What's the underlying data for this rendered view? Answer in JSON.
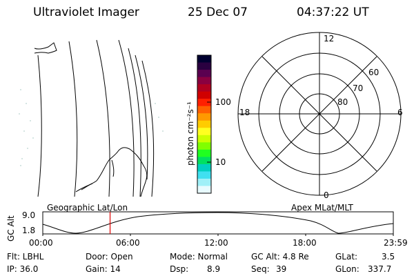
{
  "header": {
    "title": "Ultraviolet Imager",
    "date": "25 Dec 07",
    "time": "04:37:22 UT"
  },
  "colorbar": {
    "unit_label": "photon cm⁻²s⁻¹",
    "ticks": [
      "100",
      "10"
    ],
    "colors": [
      "#000030",
      "#2a0040",
      "#5a0050",
      "#8a0040",
      "#b00020",
      "#d00000",
      "#ff2000",
      "#ff6000",
      "#ff9900",
      "#ffcc00",
      "#ffff20",
      "#ccff00",
      "#80ff00",
      "#20ff20",
      "#00e060",
      "#00d0c0",
      "#40e0f0",
      "#a0f0f8",
      "#e8fbff"
    ]
  },
  "polar": {
    "labels": {
      "top": "12",
      "bottom": "0",
      "left": "18",
      "right": "6",
      "ring60": "60",
      "ring70": "70",
      "ring80": "80"
    }
  },
  "timeline": {
    "left_label": "Geographic Lat/Lon",
    "right_label": "Apex MLat/MLT",
    "axis_title": "GC Alt",
    "y_max": "9.0",
    "y_min": "1.8",
    "time_ticks": [
      "00:00",
      "06:00",
      "12:00",
      "18:00",
      "23:59"
    ],
    "current_time_fraction": 0.192
  },
  "info": {
    "filter": "Flt: LBHL",
    "ip": "IP: 36.0",
    "door": "Door: Open",
    "gain": "Gain: 14",
    "mode": "Mode: Normal",
    "dsp_label": "Dsp:",
    "dsp_value": "8.9",
    "gc_alt": "GC Alt: 4.8 Re",
    "seq_label": "Seq:",
    "seq_value": "39",
    "glat_label": "GLat:",
    "glat_value": "3.5",
    "glon_label": "GLon:",
    "glon_value": "337.7"
  }
}
